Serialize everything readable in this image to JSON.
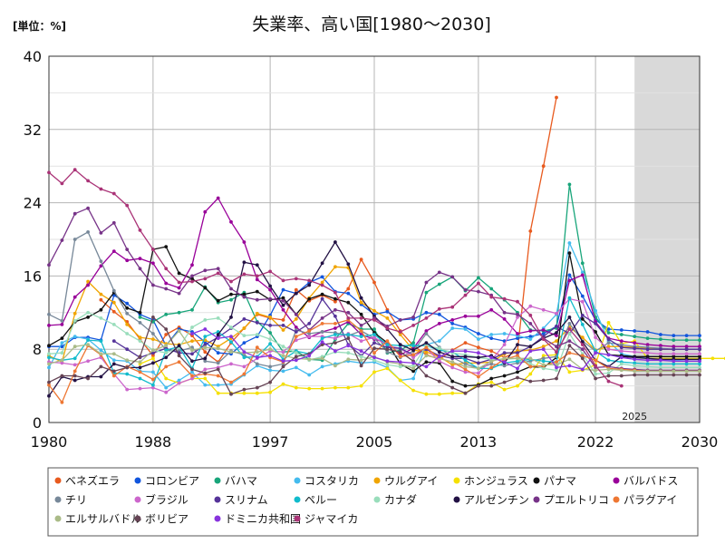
{
  "title": "失業率、高い国[1980～2030]",
  "unit_label": "[単位：%]",
  "forecast_label": "2025",
  "chart_data": {
    "type": "line",
    "title": "失業率、高い国[1980～2030]",
    "ylabel": "[単位：%]",
    "xlim": [
      1980,
      2030
    ],
    "ylim": [
      0,
      40
    ],
    "x_ticks": [
      1980,
      1988,
      1997,
      2005,
      2013,
      2022,
      2030
    ],
    "y_ticks": [
      0,
      8,
      16,
      24,
      32,
      40
    ],
    "forecast_from": 2025,
    "grid": true,
    "legend_position": "bottom",
    "series": [
      {
        "name": "ベネズエラ",
        "color": "#e85a1e",
        "start": 1984,
        "values": [
          13.4,
          12.1,
          11.0,
          9.1,
          7.3,
          9.6,
          10.4,
          9.5,
          7.7,
          6.6,
          8.7,
          10.3,
          11.8,
          11.4,
          11.2,
          14.5,
          13.3,
          13.9,
          13.2,
          14.6,
          17.8,
          15.3,
          12.3,
          10.0,
          8.4,
          7.4,
          6.9,
          7.9,
          8.7,
          8.2,
          7.8,
          7.1,
          7.8,
          20.9,
          28.0,
          35.5
        ]
      },
      {
        "name": "コロンビア",
        "color": "#1155dd",
        "start": 1980,
        "values": [
          8.3,
          8.3,
          9.3,
          9.3,
          9.0,
          13.9,
          13.0,
          11.8,
          11.2,
          8.4,
          10.2,
          9.9,
          8.8,
          7.6,
          7.5,
          8.7,
          9.4,
          11.7,
          14.5,
          14.1,
          15.3,
          15.9,
          14.3,
          14.1,
          12.9,
          11.8,
          12.1,
          11.2,
          11.3,
          12.0,
          11.8,
          10.8,
          10.4,
          9.7,
          9.2,
          8.9,
          9.2,
          9.4,
          9.7,
          10.5,
          16.1,
          13.8,
          11.2,
          10.2,
          10.1,
          10.0,
          9.9,
          9.6,
          9.5,
          9.5,
          9.5
        ]
      },
      {
        "name": "バハマ",
        "color": "#18a57a",
        "start": 1987,
        "values": [
          11.5,
          11.0,
          11.8,
          12.0,
          12.3,
          14.8,
          13.1,
          13.4,
          14.2,
          11.0,
          9.8,
          7.7,
          7.8,
          6.9,
          6.8,
          9.1,
          10.8,
          10.2,
          10.2,
          7.6,
          7.9,
          8.7,
          14.2,
          15.1,
          15.9,
          14.4,
          15.8,
          14.6,
          13.4,
          12.0,
          10.1,
          10.0,
          10.3,
          26.0,
          17.4,
          11.5,
          9.8,
          9.6,
          9.4,
          9.2,
          9.1,
          9.0,
          9.0,
          9.0
        ]
      },
      {
        "name": "コスタリカ",
        "color": "#44bbee",
        "start": 1980,
        "values": [
          6.0,
          8.7,
          9.4,
          9.1,
          7.9,
          6.8,
          6.7,
          5.6,
          5.5,
          3.8,
          4.6,
          5.5,
          4.1,
          4.1,
          4.2,
          5.2,
          6.2,
          5.7,
          5.6,
          6.0,
          5.2,
          6.1,
          6.4,
          6.7,
          6.5,
          6.6,
          6.0,
          4.6,
          4.8,
          8.5,
          8.9,
          10.3,
          10.2,
          9.1,
          9.6,
          9.7,
          9.5,
          9.1,
          10.3,
          11.8,
          19.6,
          16.4,
          12.2,
          8.9,
          7.5,
          7.2,
          7.0,
          6.9,
          6.8,
          6.7,
          6.7
        ]
      },
      {
        "name": "ウルグアイ",
        "color": "#f0a500",
        "start": 1980,
        "values": [
          7.3,
          6.6,
          11.9,
          15.4,
          14.0,
          13.1,
          10.7,
          9.3,
          9.1,
          8.6,
          8.5,
          8.9,
          9.0,
          8.3,
          9.2,
          10.3,
          11.9,
          11.5,
          10.1,
          11.3,
          13.6,
          15.3,
          17.0,
          16.9,
          13.1,
          12.2,
          11.4,
          9.6,
          7.9,
          7.7,
          7.2,
          6.3,
          6.5,
          6.5,
          6.6,
          7.5,
          7.8,
          7.9,
          8.3,
          8.9,
          10.4,
          9.3,
          7.9,
          8.3,
          8.3,
          8.2,
          8.1,
          8.0,
          8.0,
          8.0,
          8.0
        ]
      },
      {
        "name": "ホンジュラス",
        "color": "#f5e000",
        "start": 1987,
        "values": [
          6.4,
          7.0,
          4.8,
          4.3,
          4.8,
          4.8,
          3.2,
          3.2,
          3.2,
          3.2,
          3.3,
          4.2,
          3.8,
          3.7,
          3.7,
          3.8,
          3.8,
          4.0,
          5.5,
          5.9,
          4.6,
          3.5,
          3.1,
          3.1,
          3.2,
          3.2,
          4.2,
          4.4,
          3.6,
          4.0,
          5.3,
          7.3,
          7.4,
          5.5,
          5.7,
          6.3,
          10.9,
          8.6,
          8.9,
          7.0,
          7.0,
          7.0,
          7.0,
          7.0,
          7.0,
          7.0,
          7.0,
          7.0
        ]
      },
      {
        "name": "パナマ",
        "color": "#111111",
        "start": 1980,
        "values": [
          8.4,
          9.2,
          11.0,
          11.5,
          12.3,
          14.2,
          12.5,
          12.0,
          18.9,
          19.2,
          16.3,
          15.7,
          14.7,
          13.3,
          14.0,
          14.0,
          14.3,
          13.4,
          13.6,
          11.8,
          13.5,
          14.0,
          13.5,
          13.1,
          11.8,
          9.8,
          8.7,
          6.4,
          5.6,
          6.6,
          6.5,
          4.5,
          4.0,
          4.1,
          4.8,
          5.1,
          5.5,
          6.1,
          6.0,
          7.1,
          18.5,
          11.3,
          9.9,
          7.4,
          7.3,
          7.2,
          7.2,
          7.2,
          7.2,
          7.2,
          7.2
        ]
      },
      {
        "name": "バルバドス",
        "color": "#990099",
        "start": 1980,
        "values": [
          10.6,
          10.7,
          13.7,
          15.0,
          17.1,
          18.7,
          17.7,
          17.9,
          17.4,
          15.2,
          14.7,
          17.2,
          23.0,
          24.5,
          21.9,
          19.7,
          15.6,
          14.5,
          12.3,
          10.4,
          9.3,
          9.9,
          10.3,
          11.0,
          9.6,
          9.1,
          8.7,
          7.4,
          8.1,
          10.0,
          10.8,
          11.2,
          11.6,
          11.6,
          12.3,
          11.3,
          9.7,
          10.0,
          10.1,
          9.5,
          15.5,
          16.1,
          11.0,
          9.2,
          8.9,
          8.7,
          8.5,
          8.4,
          8.3,
          8.3,
          8.3
        ]
      },
      {
        "name": "チリ",
        "color": "#778899",
        "start": 1980,
        "values": [
          11.8,
          11.1,
          20.0,
          20.8,
          17.6,
          14.4,
          11.9,
          10.9,
          9.7,
          7.9,
          7.8,
          8.2,
          6.7,
          6.5,
          7.8,
          7.4,
          6.4,
          6.1,
          6.4,
          10.1,
          9.7,
          9.9,
          9.8,
          9.5,
          10.0,
          9.2,
          7.7,
          7.1,
          7.8,
          9.7,
          8.2,
          7.1,
          6.4,
          5.9,
          6.4,
          6.2,
          6.5,
          6.7,
          7.0,
          7.2,
          10.8,
          8.9,
          7.8,
          8.7,
          8.5,
          8.3,
          8.2,
          8.1,
          8.0,
          8.0,
          8.0
        ]
      },
      {
        "name": "ブラジル",
        "color": "#cc66cc",
        "start": 1980,
        "values": [
          6.6,
          6.5,
          6.3,
          6.7,
          7.1,
          5.3,
          3.6,
          3.7,
          3.8,
          3.3,
          4.3,
          4.8,
          5.8,
          6.0,
          6.4,
          6.1,
          7.0,
          7.8,
          7.7,
          9.0,
          9.4,
          9.4,
          9.2,
          9.7,
          8.9,
          9.3,
          8.4,
          8.1,
          7.1,
          8.1,
          6.7,
          6.0,
          5.5,
          5.4,
          6.8,
          8.5,
          11.5,
          12.7,
          12.3,
          11.9,
          13.5,
          13.2,
          9.3,
          8.0,
          7.8,
          7.7,
          7.6,
          7.5,
          7.5,
          7.5,
          7.5
        ]
      },
      {
        "name": "スリナム",
        "color": "#553399",
        "start": 1985,
        "values": [
          8.9,
          8.0,
          7.1,
          7.6,
          8.1,
          7.6,
          7.5,
          8.5,
          9.3,
          10.3,
          11.3,
          10.9,
          10.6,
          10.6,
          9.9,
          10.8,
          13.5,
          11.6,
          8.5,
          7.3,
          8.7,
          8.2,
          8.1,
          7.4,
          8.0,
          7.3,
          7.0,
          7.0,
          6.5,
          6.9,
          7.6,
          7.6,
          8.3,
          9.4,
          10.5,
          9.7,
          11.7,
          10.8,
          9.1,
          8.2,
          8.1,
          8.0,
          8.0,
          8.0,
          8.0,
          8.0
        ]
      },
      {
        "name": "ペルー",
        "color": "#11bbcc",
        "start": 1980,
        "values": [
          7.1,
          6.8,
          7.0,
          9.0,
          8.9,
          5.4,
          5.3,
          4.8,
          4.1,
          7.9,
          8.3,
          5.9,
          9.4,
          9.9,
          8.8,
          7.1,
          7.2,
          8.6,
          6.9,
          7.8,
          7.5,
          9.2,
          9.6,
          9.6,
          9.4,
          9.6,
          8.5,
          8.4,
          8.4,
          8.4,
          7.9,
          7.7,
          6.8,
          5.9,
          5.9,
          6.5,
          6.7,
          6.9,
          6.7,
          6.6,
          13.6,
          10.7,
          7.8,
          6.8,
          6.6,
          6.5,
          6.4,
          6.4,
          6.4,
          6.4,
          6.4
        ]
      },
      {
        "name": "カナダ",
        "color": "#99ddbb",
        "start": 1980,
        "values": [
          7.5,
          7.6,
          11.1,
          12.0,
          11.4,
          10.7,
          9.7,
          8.9,
          7.9,
          7.6,
          8.2,
          10.4,
          11.2,
          11.4,
          10.4,
          9.5,
          9.6,
          9.1,
          8.3,
          7.6,
          6.8,
          7.2,
          7.7,
          7.6,
          7.2,
          6.8,
          6.3,
          6.1,
          6.2,
          8.4,
          8.1,
          7.6,
          7.4,
          7.1,
          6.9,
          6.9,
          7.0,
          6.4,
          5.9,
          5.7,
          9.7,
          7.5,
          5.3,
          5.4,
          6.4,
          6.2,
          6.1,
          6.0,
          6.0,
          6.0,
          6.0
        ]
      },
      {
        "name": "アルゼンチン",
        "color": "#221144",
        "start": 1980,
        "values": [
          2.9,
          5.0,
          4.6,
          5.0,
          5.0,
          6.4,
          6.0,
          6.0,
          6.5,
          7.1,
          8.4,
          6.7,
          7.0,
          9.6,
          11.5,
          17.5,
          17.2,
          14.9,
          12.8,
          14.1,
          15.0,
          17.4,
          19.7,
          17.3,
          13.6,
          11.6,
          10.2,
          8.5,
          7.9,
          8.7,
          7.7,
          7.2,
          7.2,
          7.1,
          7.3,
          6.5,
          8.5,
          8.3,
          9.2,
          9.8,
          11.5,
          8.8,
          6.8,
          6.1,
          7.2,
          7.1,
          7.0,
          6.9,
          6.9,
          6.9,
          6.9
        ]
      },
      {
        "name": "プエルトリコ",
        "color": "#773388",
        "start": 1980,
        "values": [
          17.2,
          19.9,
          22.8,
          23.4,
          20.7,
          21.8,
          18.9,
          16.8,
          15.0,
          14.6,
          14.1,
          16.0,
          16.6,
          16.8,
          14.6,
          13.7,
          13.4,
          13.5,
          13.3,
          11.8,
          10.1,
          11.4,
          12.3,
          12.0,
          10.6,
          11.4,
          10.5,
          11.2,
          11.5,
          15.3,
          16.4,
          15.9,
          14.5,
          14.3,
          13.9,
          12.0,
          11.8,
          10.8,
          9.2,
          8.3,
          8.9,
          8.0,
          6.0,
          6.1,
          5.9,
          5.8,
          5.7,
          5.7,
          5.7,
          5.7,
          5.7
        ]
      },
      {
        "name": "パラグアイ",
        "color": "#ee7733",
        "start": 1980,
        "values": [
          4.1,
          2.2,
          5.6,
          8.4,
          7.4,
          5.1,
          6.1,
          5.5,
          4.7,
          6.1,
          6.6,
          5.1,
          5.3,
          5.1,
          4.4,
          5.3,
          8.2,
          7.1,
          6.6,
          9.4,
          10.0,
          10.8,
          10.8,
          11.2,
          10.0,
          7.6,
          8.9,
          7.2,
          7.4,
          8.2,
          7.0,
          6.6,
          5.8,
          5.0,
          6.0,
          6.9,
          7.3,
          6.1,
          6.2,
          6.6,
          7.6,
          7.3,
          6.8,
          5.9,
          5.8,
          5.7,
          5.6,
          5.6,
          5.6,
          5.6,
          5.6
        ]
      },
      {
        "name": "エルサルバドル",
        "color": "#aabb88",
        "start": 1980,
        "values": [
          6.4,
          6.8,
          8.3,
          8.5,
          7.5,
          7.5,
          6.8,
          6.6,
          7.9,
          8.4,
          10.0,
          7.9,
          8.2,
          8.1,
          7.7,
          7.6,
          7.7,
          8.0,
          7.3,
          7.0,
          6.9,
          7.0,
          6.2,
          6.9,
          6.8,
          7.2,
          6.6,
          6.4,
          5.9,
          7.3,
          7.0,
          6.6,
          6.1,
          5.9,
          6.7,
          7.0,
          7.0,
          7.0,
          6.3,
          6.3,
          6.9,
          5.8,
          5.7,
          5.8,
          5.7,
          5.6,
          5.6,
          5.6,
          5.6,
          5.6,
          5.6
        ]
      },
      {
        "name": "ボリビア",
        "color": "#664455",
        "start": 1980,
        "values": [
          4.4,
          5.1,
          5.1,
          4.8,
          6.1,
          5.6,
          6.0,
          7.2,
          11.5,
          10.2,
          7.3,
          5.8,
          5.4,
          5.8,
          3.1,
          3.6,
          3.8,
          4.4,
          6.1,
          7.2,
          7.5,
          8.5,
          8.7,
          9.2,
          6.2,
          8.1,
          8.0,
          7.7,
          6.7,
          5.1,
          4.5,
          3.8,
          3.2,
          4.0,
          4.0,
          4.4,
          4.9,
          4.5,
          4.6,
          4.8,
          8.4,
          7.0,
          4.8,
          5.1,
          5.1,
          5.2,
          5.2,
          5.2,
          5.2,
          5.2,
          5.2
        ]
      },
      {
        "name": "ドミニカ共和国",
        "color": "#8833dd",
        "start": 1991,
        "values": [
          9.7,
          10.2,
          9.2,
          9.4,
          7.7,
          7.1,
          7.3,
          6.7,
          6.8,
          7.3,
          8.8,
          7.8,
          8.4,
          7.8,
          7.1,
          6.7,
          6.6,
          6.5,
          6.1,
          7.2,
          7.8,
          7.8,
          7.6,
          7.1,
          6.6,
          5.9,
          7.8,
          8.0,
          6.0,
          6.2,
          5.8,
          7.6,
          7.4,
          7.1,
          6.9,
          6.8,
          6.8,
          6.7,
          6.7,
          6.7
        ]
      },
      {
        "name": "ジャマイカ",
        "color": "#aa3377",
        "start": 1980,
        "values": [
          27.3,
          26.1,
          27.6,
          26.4,
          25.5,
          25.0,
          23.7,
          21.0,
          18.9,
          16.8,
          15.3,
          15.4,
          15.7,
          16.3,
          15.4,
          16.2,
          16.0,
          16.5,
          15.5,
          15.7,
          15.5,
          15.0,
          14.2,
          11.4,
          11.4,
          11.2,
          10.3,
          9.9,
          10.6,
          11.4,
          12.4,
          12.6,
          13.9,
          15.2,
          13.7,
          13.5,
          13.2,
          11.7,
          9.1,
          7.7,
          10.2,
          8.5,
          6.2,
          4.5,
          4.0
        ]
      }
    ]
  }
}
